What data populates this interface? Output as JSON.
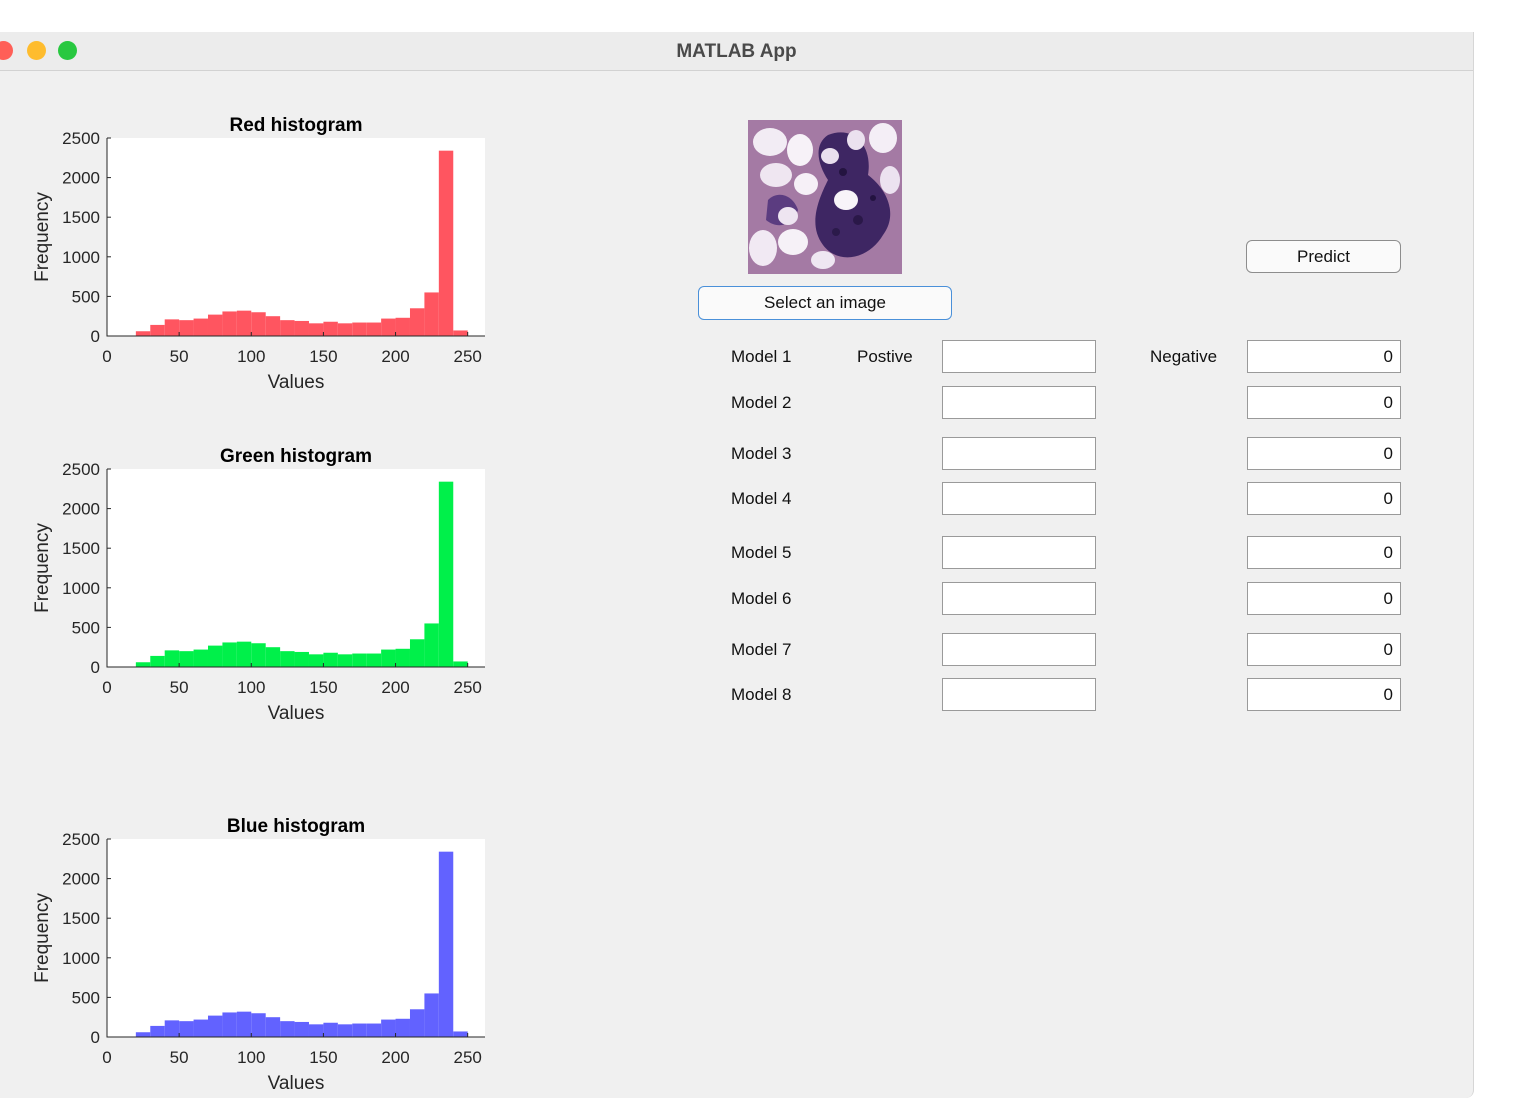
{
  "window": {
    "title": "MATLAB App"
  },
  "controls": {
    "select_label": "Select an image",
    "predict_label": "Predict"
  },
  "columns": {
    "positive_label": "Postive",
    "negative_label": "Negative"
  },
  "models": [
    {
      "label": "Model 1",
      "positive": "",
      "negative": "0"
    },
    {
      "label": "Model 2",
      "positive": "",
      "negative": "0"
    },
    {
      "label": "Model 3",
      "positive": "",
      "negative": "0"
    },
    {
      "label": "Model 4",
      "positive": "",
      "negative": "0"
    },
    {
      "label": "Model 5",
      "positive": "",
      "negative": "0"
    },
    {
      "label": "Model 6",
      "positive": "",
      "negative": "0"
    },
    {
      "label": "Model 7",
      "positive": "",
      "negative": "0"
    },
    {
      "label": "Model 8",
      "positive": "",
      "negative": "0"
    }
  ],
  "chart_data": [
    {
      "type": "bar",
      "title": "Red histogram",
      "xlabel": "Values",
      "ylabel": "Frequency",
      "xlim": [
        0,
        262
      ],
      "ylim": [
        0,
        2500
      ],
      "xticks": [
        0,
        50,
        100,
        150,
        200,
        250
      ],
      "yticks": [
        0,
        500,
        1000,
        1500,
        2000,
        2500
      ],
      "bin_width": 10,
      "bins_start": [
        20,
        30,
        40,
        50,
        60,
        70,
        80,
        90,
        100,
        110,
        120,
        130,
        140,
        150,
        160,
        170,
        180,
        190,
        200,
        210,
        220,
        230,
        240
      ],
      "values": [
        60,
        140,
        210,
        200,
        220,
        270,
        310,
        320,
        300,
        250,
        200,
        190,
        160,
        180,
        160,
        170,
        170,
        220,
        230,
        350,
        550,
        2340,
        70
      ],
      "color": "#ff5560"
    },
    {
      "type": "bar",
      "title": "Green histogram",
      "xlabel": "Values",
      "ylabel": "Frequency",
      "xlim": [
        0,
        262
      ],
      "ylim": [
        0,
        2500
      ],
      "xticks": [
        0,
        50,
        100,
        150,
        200,
        250
      ],
      "yticks": [
        0,
        500,
        1000,
        1500,
        2000,
        2500
      ],
      "bin_width": 10,
      "bins_start": [
        20,
        30,
        40,
        50,
        60,
        70,
        80,
        90,
        100,
        110,
        120,
        130,
        140,
        150,
        160,
        170,
        180,
        190,
        200,
        210,
        220,
        230,
        240
      ],
      "values": [
        60,
        140,
        210,
        200,
        220,
        270,
        310,
        320,
        300,
        250,
        200,
        190,
        160,
        180,
        160,
        170,
        170,
        220,
        230,
        350,
        550,
        2340,
        70
      ],
      "color": "#00f04a"
    },
    {
      "type": "bar",
      "title": "Blue histogram",
      "xlabel": "Values",
      "ylabel": "Frequency",
      "xlim": [
        0,
        262
      ],
      "ylim": [
        0,
        2500
      ],
      "xticks": [
        0,
        50,
        100,
        150,
        200,
        250
      ],
      "yticks": [
        0,
        500,
        1000,
        1500,
        2000,
        2500
      ],
      "bin_width": 10,
      "bins_start": [
        20,
        30,
        40,
        50,
        60,
        70,
        80,
        90,
        100,
        110,
        120,
        130,
        140,
        150,
        160,
        170,
        180,
        190,
        200,
        210,
        220,
        230,
        240
      ],
      "values": [
        60,
        140,
        210,
        200,
        220,
        270,
        310,
        320,
        300,
        250,
        200,
        190,
        160,
        180,
        160,
        170,
        170,
        220,
        230,
        350,
        550,
        2340,
        70
      ],
      "color": "#6262ff"
    }
  ]
}
